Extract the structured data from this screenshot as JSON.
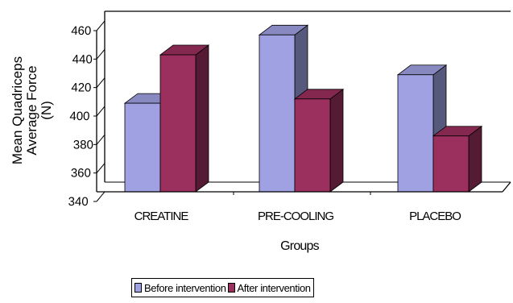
{
  "chart_data": {
    "type": "bar",
    "title": "",
    "categories": [
      "CREATINE",
      "PRE-COOLING",
      "PLACEBO"
    ],
    "series": [
      {
        "name": "Before intervention",
        "values": [
          409,
          457,
          429
        ],
        "color": "#9fa1e2"
      },
      {
        "name": "After intervention",
        "values": [
          443,
          412,
          386
        ],
        "color": "#9b2f5e"
      }
    ],
    "xlabel": "Groups",
    "ylabel_lines": [
      "Mean Quadriceps",
      "Average Force",
      "(N)"
    ],
    "ylim": [
      340,
      460
    ],
    "yticks": [
      340,
      360,
      380,
      400,
      420,
      440,
      460
    ],
    "grid": false,
    "legend_position": "bottom",
    "style": "3d"
  }
}
